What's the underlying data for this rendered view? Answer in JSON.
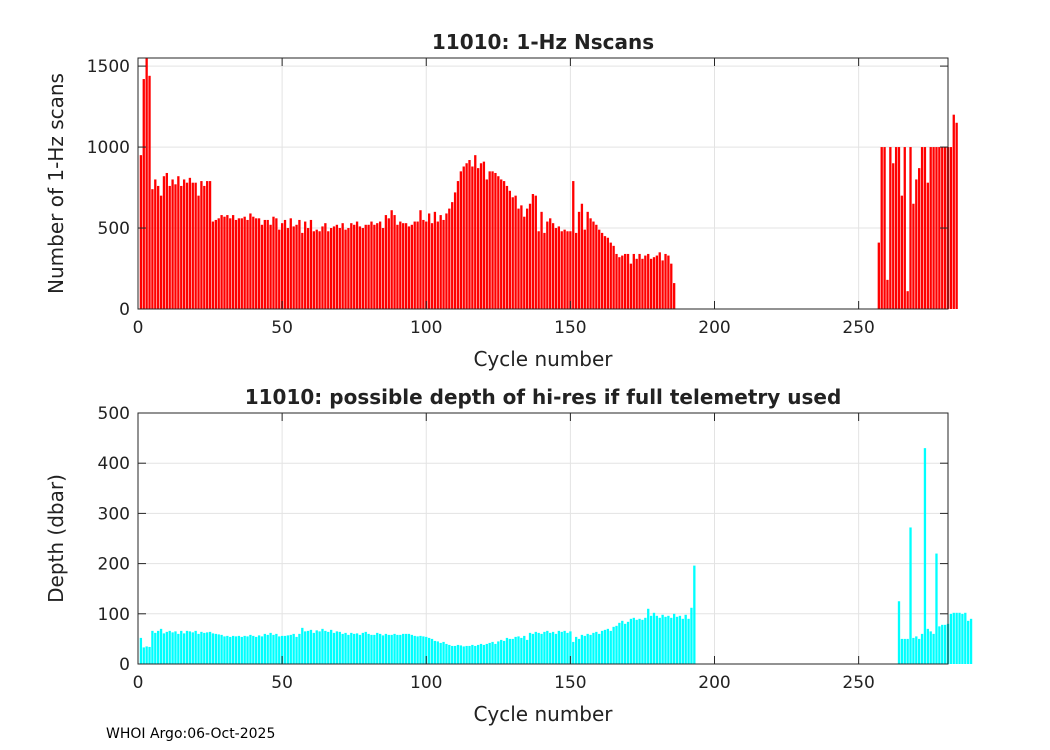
{
  "chart_data": [
    {
      "type": "bar",
      "title": "11010: 1-Hz Nscans",
      "xlabel": "Cycle number",
      "ylabel": "Number of 1-Hz scans",
      "xlim": [
        0,
        281
      ],
      "ylim": [
        0,
        1550
      ],
      "xticks": [
        0,
        50,
        100,
        150,
        200,
        250
      ],
      "yticks": [
        0,
        500,
        1000,
        1500
      ],
      "grid": true,
      "color": "#ff0000",
      "x_start": 1,
      "values": [
        950,
        1420,
        1550,
        1440,
        740,
        800,
        760,
        700,
        820,
        840,
        760,
        800,
        770,
        820,
        760,
        800,
        780,
        810,
        780,
        780,
        700,
        790,
        760,
        790,
        790,
        540,
        550,
        560,
        580,
        570,
        580,
        560,
        580,
        550,
        560,
        560,
        570,
        550,
        590,
        570,
        560,
        560,
        520,
        550,
        550,
        520,
        570,
        560,
        490,
        530,
        550,
        500,
        560,
        510,
        520,
        550,
        470,
        540,
        500,
        550,
        480,
        490,
        480,
        510,
        530,
        480,
        500,
        510,
        520,
        500,
        530,
        490,
        500,
        530,
        520,
        540,
        510,
        500,
        520,
        520,
        540,
        520,
        530,
        540,
        500,
        580,
        560,
        610,
        580,
        520,
        540,
        530,
        530,
        510,
        520,
        540,
        540,
        610,
        550,
        540,
        590,
        530,
        600,
        540,
        580,
        550,
        590,
        620,
        660,
        720,
        790,
        850,
        880,
        900,
        920,
        880,
        950,
        870,
        900,
        910,
        800,
        850,
        850,
        840,
        820,
        800,
        790,
        760,
        730,
        690,
        700,
        620,
        640,
        570,
        620,
        650,
        710,
        700,
        480,
        600,
        470,
        540,
        560,
        530,
        500,
        510,
        480,
        490,
        480,
        480,
        790,
        470,
        600,
        650,
        490,
        600,
        560,
        540,
        520,
        490,
        470,
        450,
        440,
        410,
        390,
        340,
        320,
        330,
        340,
        340,
        280,
        340,
        310,
        340,
        310,
        330,
        340,
        310,
        320,
        330,
        350,
        300,
        340,
        330,
        280,
        160,
        0,
        0,
        0,
        0,
        0,
        0,
        0,
        0,
        0,
        0,
        0,
        0,
        0,
        0,
        0,
        0,
        0,
        0,
        0,
        0,
        0,
        0,
        0,
        0,
        0,
        0,
        0,
        0,
        0,
        0,
        0,
        0,
        0,
        0,
        0,
        0,
        0,
        0,
        0,
        0,
        0,
        0,
        0,
        0,
        0,
        0,
        0,
        0,
        0,
        0,
        0,
        0,
        0,
        0,
        0,
        0,
        0,
        0,
        0,
        0,
        0,
        0,
        0,
        0,
        0,
        0,
        0,
        0,
        0,
        0,
        410,
        1000,
        1000,
        180,
        1000,
        900,
        1000,
        1000,
        700,
        1000,
        110,
        1000,
        650,
        800,
        870,
        1000,
        1000,
        780,
        1000,
        1000,
        1000,
        1000,
        1000,
        1000,
        1000,
        1000,
        1200,
        1150
      ]
    },
    {
      "type": "bar",
      "title": "11010: possible depth of hi-res if full telemetry used",
      "xlabel": "Cycle number",
      "ylabel": "Depth (dbar)",
      "xlim": [
        0,
        281
      ],
      "ylim": [
        0,
        500
      ],
      "xticks": [
        0,
        50,
        100,
        150,
        200,
        250
      ],
      "yticks": [
        0,
        100,
        200,
        300,
        400,
        500
      ],
      "grid": true,
      "color": "#00ffff",
      "x_start": 1,
      "values": [
        52,
        33,
        35,
        34,
        66,
        62,
        66,
        70,
        61,
        64,
        66,
        63,
        65,
        60,
        66,
        61,
        66,
        65,
        63,
        66,
        60,
        64,
        62,
        63,
        64,
        61,
        60,
        59,
        58,
        55,
        56,
        54,
        56,
        55,
        56,
        54,
        56,
        55,
        58,
        56,
        54,
        57,
        55,
        60,
        58,
        62,
        58,
        60,
        55,
        56,
        56,
        57,
        58,
        60,
        54,
        60,
        72,
        65,
        66,
        68,
        62,
        67,
        65,
        70,
        66,
        64,
        68,
        62,
        65,
        64,
        60,
        62,
        58,
        62,
        60,
        61,
        58,
        62,
        64,
        60,
        58,
        58,
        62,
        60,
        57,
        60,
        58,
        58,
        60,
        58,
        58,
        60,
        60,
        60,
        58,
        56,
        55,
        56,
        55,
        54,
        52,
        50,
        46,
        45,
        42,
        44,
        40,
        38,
        36,
        36,
        38,
        37,
        35,
        36,
        36,
        38,
        36,
        38,
        40,
        38,
        40,
        42,
        44,
        40,
        45,
        48,
        46,
        52,
        50,
        50,
        54,
        55,
        52,
        56,
        48,
        62,
        60,
        64,
        62,
        60,
        64,
        66,
        62,
        64,
        60,
        66,
        64,
        66,
        62,
        65,
        44,
        54,
        50,
        58,
        56,
        60,
        58,
        62,
        64,
        60,
        66,
        68,
        70,
        66,
        74,
        76,
        82,
        86,
        80,
        84,
        90,
        92,
        88,
        90,
        88,
        92,
        110,
        96,
        102,
        96,
        92,
        98,
        94,
        96,
        92,
        100,
        94,
        96,
        90,
        98,
        90,
        112,
        196,
        0,
        0,
        0,
        0,
        0,
        0,
        0,
        0,
        0,
        0,
        0,
        0,
        0,
        0,
        0,
        0,
        0,
        0,
        0,
        0,
        0,
        0,
        0,
        0,
        0,
        0,
        0,
        0,
        0,
        0,
        0,
        0,
        0,
        0,
        0,
        0,
        0,
        0,
        0,
        0,
        0,
        0,
        0,
        0,
        0,
        0,
        0,
        0,
        0,
        0,
        0,
        0,
        0,
        0,
        0,
        0,
        0,
        0,
        0,
        0,
        0,
        0,
        0,
        0,
        0,
        0,
        0,
        0,
        0,
        0,
        125,
        50,
        50,
        50,
        272,
        52,
        55,
        50,
        60,
        430,
        70,
        65,
        60,
        220,
        75,
        78,
        78,
        80,
        100,
        102,
        102,
        102,
        100,
        102,
        86,
        90
      ]
    }
  ],
  "footer": "WHOI Argo:06-Oct-2025"
}
